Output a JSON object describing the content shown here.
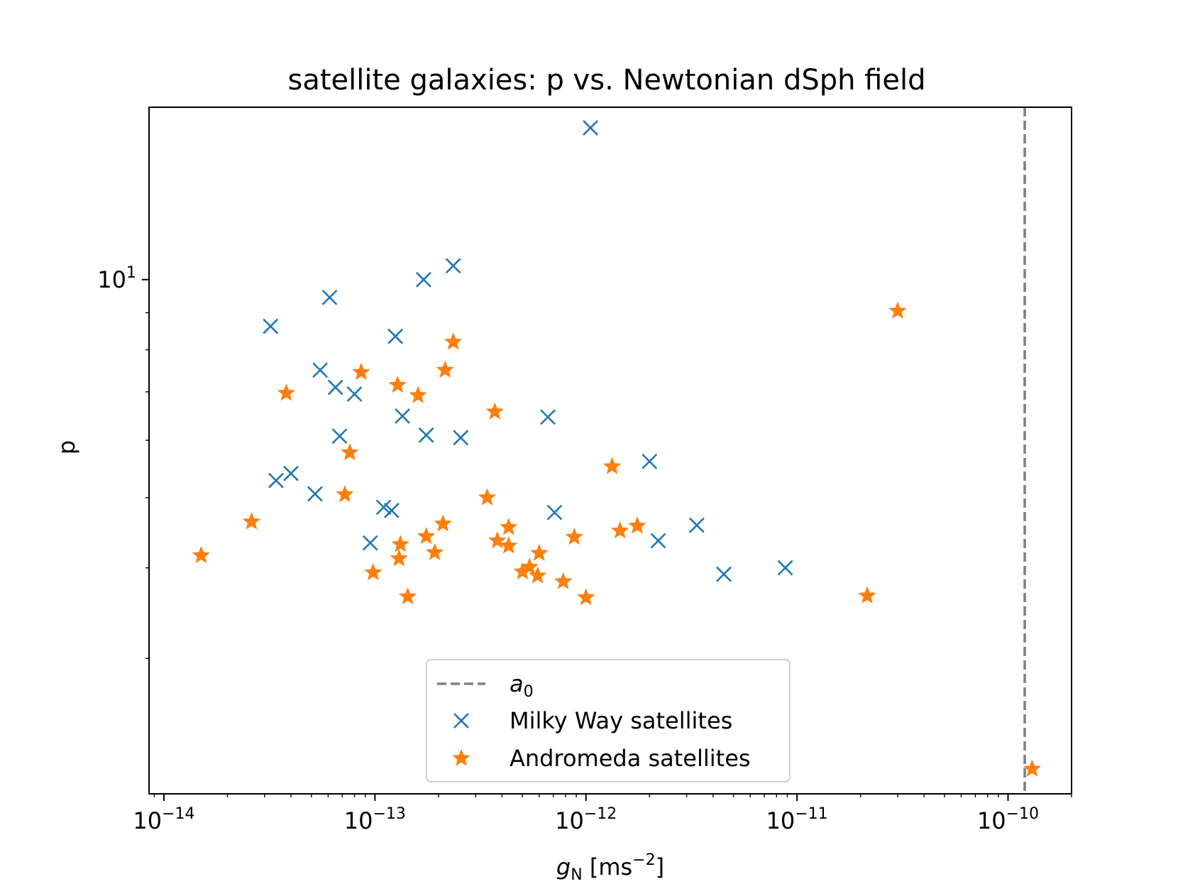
{
  "chart_data": {
    "type": "scatter",
    "title": "satellite galaxies: p vs. Newtonian dSph field",
    "xlabel": "gN [ms^-2]",
    "xlabel_main": "g",
    "xlabel_sub": "N",
    "xlabel_unit_open": " [ms",
    "xlabel_unit_exp": "−2",
    "xlabel_unit_close": "]",
    "ylabel": "p",
    "xscale": "log",
    "yscale": "log",
    "xlim": [
      8.5e-15,
      2e-10
    ],
    "ylim": [
      1.95,
      17.3
    ],
    "x_ticks": [
      {
        "value": 1e-14,
        "base": "10",
        "exp": "−14"
      },
      {
        "value": 1e-13,
        "base": "10",
        "exp": "−13"
      },
      {
        "value": 1e-12,
        "base": "10",
        "exp": "−12"
      },
      {
        "value": 1e-11,
        "base": "10",
        "exp": "−11"
      },
      {
        "value": 1e-10,
        "base": "10",
        "exp": "−10"
      }
    ],
    "y_ticks": [
      {
        "value": 10,
        "base": "10",
        "exp": "1"
      }
    ],
    "y_minor_ticks": [
      3,
      4,
      5,
      6,
      7,
      8,
      9
    ],
    "reference_line": {
      "name": "a_0",
      "label_main": "a",
      "label_sub": "0",
      "x": 1.2e-10,
      "color": "#808080",
      "style": "dashed"
    },
    "series": [
      {
        "name": "Milky Way satellites",
        "marker": "x",
        "color": "#1f77b4",
        "points": [
          [
            1.05e-12,
            16.2
          ],
          [
            2.35e-13,
            10.45
          ],
          [
            1.7e-13,
            10.0
          ],
          [
            6.1e-14,
            9.45
          ],
          [
            3.2e-14,
            8.62
          ],
          [
            1.25e-13,
            8.35
          ],
          [
            5.5e-14,
            7.5
          ],
          [
            6.5e-14,
            7.1
          ],
          [
            8e-14,
            6.95
          ],
          [
            1.35e-13,
            6.48
          ],
          [
            6.6e-13,
            6.46
          ],
          [
            6.8e-14,
            6.08
          ],
          [
            1.75e-13,
            6.1
          ],
          [
            2.55e-13,
            6.05
          ],
          [
            2e-12,
            5.61
          ],
          [
            4e-14,
            5.4
          ],
          [
            3.4e-14,
            5.28
          ],
          [
            5.2e-14,
            5.06
          ],
          [
            1.1e-13,
            4.85
          ],
          [
            1.2e-13,
            4.8
          ],
          [
            7.1e-13,
            4.77
          ],
          [
            3.35e-12,
            4.58
          ],
          [
            2.2e-12,
            4.36
          ],
          [
            9.5e-14,
            4.33
          ],
          [
            4.5e-12,
            3.92
          ],
          [
            8.8e-12,
            4.0
          ]
        ]
      },
      {
        "name": "Andromeda satellites",
        "marker": "*",
        "color": "#ff7f0e",
        "points": [
          [
            3e-11,
            9.05
          ],
          [
            2.35e-13,
            8.2
          ],
          [
            2.15e-13,
            7.5
          ],
          [
            8.6e-14,
            7.45
          ],
          [
            1.28e-13,
            7.15
          ],
          [
            3.8e-14,
            6.97
          ],
          [
            1.6e-13,
            6.92
          ],
          [
            3.7e-13,
            6.57
          ],
          [
            7.6e-14,
            5.77
          ],
          [
            1.33e-12,
            5.52
          ],
          [
            7.2e-14,
            5.05
          ],
          [
            3.4e-13,
            5.0
          ],
          [
            2.6e-14,
            4.63
          ],
          [
            2.1e-13,
            4.6
          ],
          [
            4.3e-13,
            4.55
          ],
          [
            1.75e-12,
            4.57
          ],
          [
            1.45e-12,
            4.5
          ],
          [
            1.75e-13,
            4.42
          ],
          [
            8.8e-13,
            4.41
          ],
          [
            3.8e-13,
            4.36
          ],
          [
            1.32e-13,
            4.31
          ],
          [
            4.3e-13,
            4.29
          ],
          [
            1.92e-13,
            4.2
          ],
          [
            6e-13,
            4.19
          ],
          [
            1.5e-14,
            4.16
          ],
          [
            1.3e-13,
            4.12
          ],
          [
            5.4e-13,
            4.01
          ],
          [
            5e-13,
            3.95
          ],
          [
            9.8e-14,
            3.94
          ],
          [
            5.9e-13,
            3.9
          ],
          [
            7.8e-13,
            3.83
          ],
          [
            1.43e-13,
            3.65
          ],
          [
            2.15e-11,
            3.66
          ],
          [
            1e-12,
            3.64
          ],
          [
            1.3e-10,
            2.11
          ]
        ]
      }
    ],
    "legend": {
      "position": "lower-center",
      "entries": [
        {
          "kind": "line",
          "label_main": "a",
          "label_sub": "0"
        },
        {
          "kind": "x",
          "label": "Milky Way satellites"
        },
        {
          "kind": "star",
          "label": "Andromeda satellites"
        }
      ]
    }
  }
}
